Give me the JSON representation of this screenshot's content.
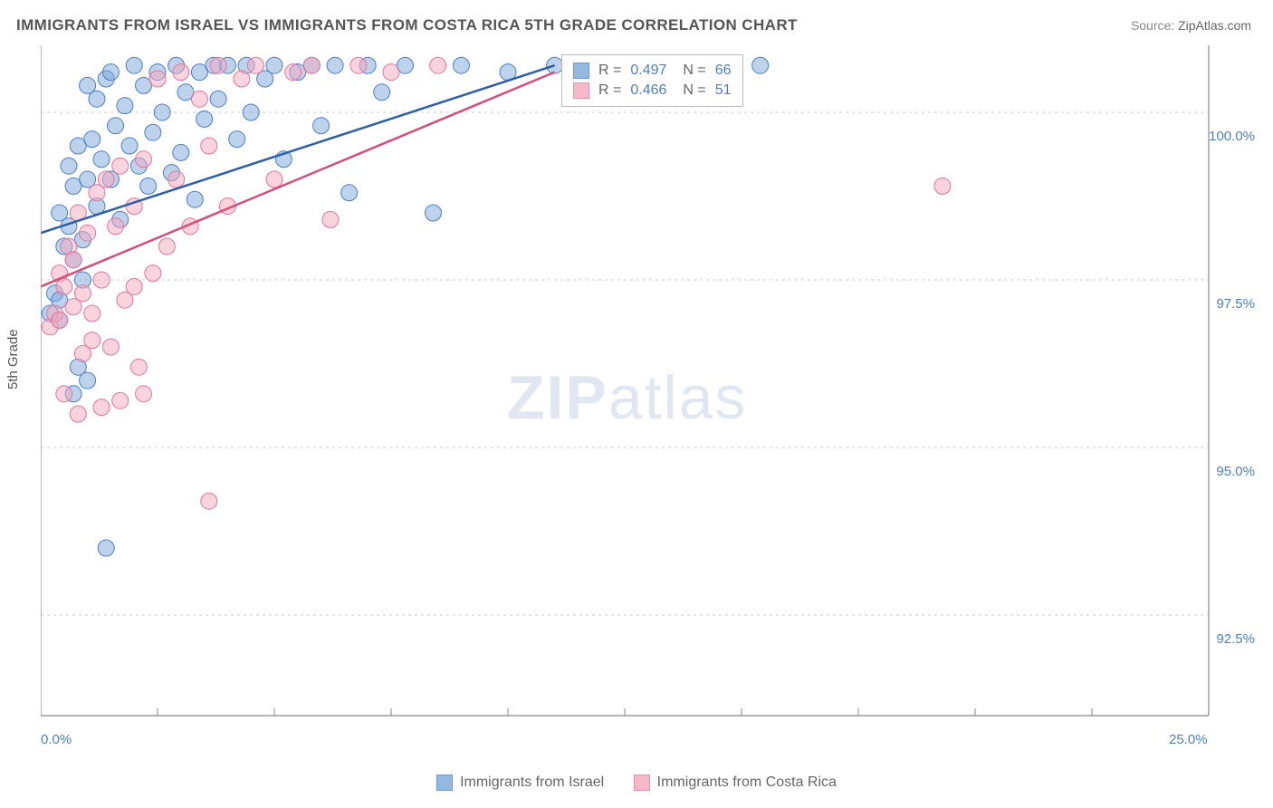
{
  "chart": {
    "type": "scatter",
    "title": "IMMIGRANTS FROM ISRAEL VS IMMIGRANTS FROM COSTA RICA 5TH GRADE CORRELATION CHART",
    "ylabel": "5th Grade",
    "source_label": "Source:",
    "source_value": "ZipAtlas.com",
    "watermark_bold": "ZIP",
    "watermark_light": "atlas",
    "background_color": "#ffffff",
    "grid_color": "#cccccc",
    "axis_color": "#888888",
    "title_color": "#555555",
    "tick_label_color": "#4a7fc9",
    "title_fontsize": 17,
    "label_fontsize": 15,
    "tick_fontsize": 15,
    "legend_fontsize": 16,
    "xlim": [
      0,
      25
    ],
    "ylim": [
      91,
      101
    ],
    "xtick_labels": [
      "0.0%",
      "25.0%"
    ],
    "xtick_positions": [
      0,
      25
    ],
    "xtick_minor": [
      2.5,
      5,
      7.5,
      10,
      12.5,
      15,
      17.5,
      20,
      22.5
    ],
    "ytick_labels": [
      "92.5%",
      "95.0%",
      "97.5%",
      "100.0%"
    ],
    "ytick_positions": [
      92.5,
      95.0,
      97.5,
      100.0
    ],
    "marker_radius": 9,
    "marker_opacity": 0.5,
    "line_width": 2.5,
    "series": [
      {
        "name": "Immigrants from Israel",
        "fill_color": "#7ba7d9",
        "stroke_color": "#4a7fc9",
        "line_color": "#2c5fa8",
        "r_value": "0.497",
        "n_value": "66",
        "trend": {
          "x1": 0,
          "y1": 98.2,
          "x2": 11,
          "y2": 100.7
        },
        "points": [
          [
            0.2,
            97.0
          ],
          [
            0.3,
            97.3
          ],
          [
            0.4,
            97.2
          ],
          [
            0.4,
            98.5
          ],
          [
            0.5,
            98.0
          ],
          [
            0.6,
            98.3
          ],
          [
            0.6,
            99.2
          ],
          [
            0.7,
            97.8
          ],
          [
            0.7,
            98.9
          ],
          [
            0.8,
            99.5
          ],
          [
            0.9,
            98.1
          ],
          [
            1.0,
            99.0
          ],
          [
            1.0,
            100.4
          ],
          [
            1.1,
            99.6
          ],
          [
            1.2,
            98.6
          ],
          [
            1.2,
            100.2
          ],
          [
            1.3,
            99.3
          ],
          [
            1.4,
            100.5
          ],
          [
            1.5,
            99.0
          ],
          [
            1.5,
            100.6
          ],
          [
            1.6,
            99.8
          ],
          [
            1.7,
            98.4
          ],
          [
            1.8,
            100.1
          ],
          [
            1.9,
            99.5
          ],
          [
            2.0,
            100.7
          ],
          [
            2.1,
            99.2
          ],
          [
            2.2,
            100.4
          ],
          [
            2.3,
            98.9
          ],
          [
            2.4,
            99.7
          ],
          [
            2.5,
            100.6
          ],
          [
            2.6,
            100.0
          ],
          [
            2.8,
            99.1
          ],
          [
            2.9,
            100.7
          ],
          [
            3.0,
            99.4
          ],
          [
            3.1,
            100.3
          ],
          [
            3.3,
            98.7
          ],
          [
            3.4,
            100.6
          ],
          [
            3.5,
            99.9
          ],
          [
            3.7,
            100.7
          ],
          [
            3.8,
            100.2
          ],
          [
            4.0,
            100.7
          ],
          [
            4.2,
            99.6
          ],
          [
            4.4,
            100.7
          ],
          [
            4.5,
            100.0
          ],
          [
            4.8,
            100.5
          ],
          [
            5.0,
            100.7
          ],
          [
            5.2,
            99.3
          ],
          [
            5.5,
            100.6
          ],
          [
            5.8,
            100.7
          ],
          [
            6.0,
            99.8
          ],
          [
            6.3,
            100.7
          ],
          [
            6.6,
            98.8
          ],
          [
            7.0,
            100.7
          ],
          [
            7.3,
            100.3
          ],
          [
            7.8,
            100.7
          ],
          [
            8.4,
            98.5
          ],
          [
            9.0,
            100.7
          ],
          [
            10.0,
            100.6
          ],
          [
            11.0,
            100.7
          ],
          [
            0.4,
            96.9
          ],
          [
            0.8,
            96.2
          ],
          [
            1.0,
            96.0
          ],
          [
            0.7,
            95.8
          ],
          [
            1.4,
            93.5
          ],
          [
            15.4,
            100.7
          ],
          [
            0.9,
            97.5
          ]
        ]
      },
      {
        "name": "Immigrants from Costa Rica",
        "fill_color": "#f4a8bd",
        "stroke_color": "#e8749a",
        "line_color": "#d64d7a",
        "r_value": "0.466",
        "n_value": "51",
        "trend": {
          "x1": 0,
          "y1": 97.4,
          "x2": 11,
          "y2": 100.6
        },
        "points": [
          [
            0.2,
            96.8
          ],
          [
            0.3,
            97.0
          ],
          [
            0.4,
            96.9
          ],
          [
            0.4,
            97.6
          ],
          [
            0.5,
            97.4
          ],
          [
            0.6,
            98.0
          ],
          [
            0.7,
            97.1
          ],
          [
            0.7,
            97.8
          ],
          [
            0.8,
            98.5
          ],
          [
            0.9,
            97.3
          ],
          [
            1.0,
            98.2
          ],
          [
            1.1,
            97.0
          ],
          [
            1.2,
            98.8
          ],
          [
            1.3,
            97.5
          ],
          [
            1.4,
            99.0
          ],
          [
            1.5,
            96.5
          ],
          [
            1.6,
            98.3
          ],
          [
            1.7,
            99.2
          ],
          [
            1.8,
            97.2
          ],
          [
            2.0,
            98.6
          ],
          [
            2.1,
            96.2
          ],
          [
            2.2,
            99.3
          ],
          [
            2.4,
            97.6
          ],
          [
            2.5,
            100.5
          ],
          [
            2.7,
            98.0
          ],
          [
            2.9,
            99.0
          ],
          [
            3.0,
            100.6
          ],
          [
            3.2,
            98.3
          ],
          [
            3.4,
            100.2
          ],
          [
            3.6,
            99.5
          ],
          [
            3.8,
            100.7
          ],
          [
            4.0,
            98.6
          ],
          [
            4.3,
            100.5
          ],
          [
            4.6,
            100.7
          ],
          [
            5.0,
            99.0
          ],
          [
            5.4,
            100.6
          ],
          [
            5.8,
            100.7
          ],
          [
            6.2,
            98.4
          ],
          [
            6.8,
            100.7
          ],
          [
            7.5,
            100.6
          ],
          [
            8.5,
            100.7
          ],
          [
            0.5,
            95.8
          ],
          [
            0.8,
            95.5
          ],
          [
            1.3,
            95.6
          ],
          [
            1.7,
            95.7
          ],
          [
            2.2,
            95.8
          ],
          [
            3.6,
            94.2
          ],
          [
            0.9,
            96.4
          ],
          [
            1.1,
            96.6
          ],
          [
            19.3,
            98.9
          ],
          [
            2.0,
            97.4
          ]
        ]
      }
    ],
    "stat_box_labels": {
      "r": "R =",
      "n": "N ="
    }
  }
}
